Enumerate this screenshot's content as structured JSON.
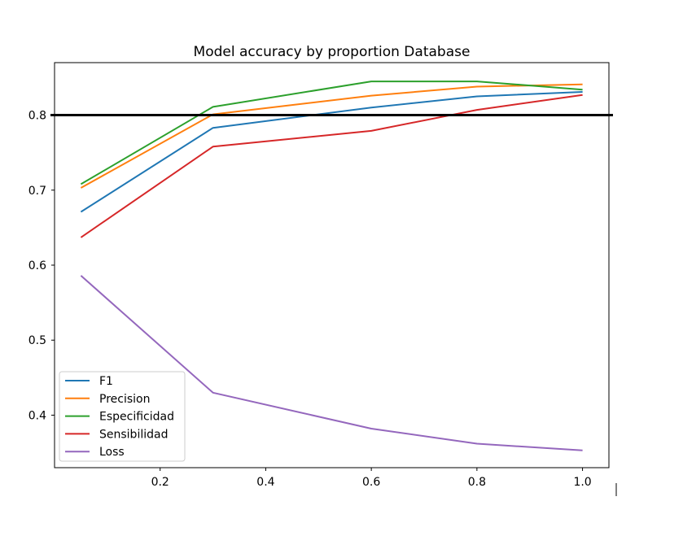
{
  "chart_data": {
    "type": "line",
    "title": "Model accuracy by proportion Database",
    "xlabel": "",
    "ylabel": "",
    "xlim": [
      0.0,
      1.05
    ],
    "ylim": [
      0.33,
      0.87
    ],
    "xticks": [
      0.2,
      0.4,
      0.6,
      0.8,
      1.0
    ],
    "xtick_labels": [
      "0.2",
      "0.4",
      "0.6",
      "0.8",
      "1.0"
    ],
    "yticks": [
      0.4,
      0.5,
      0.6,
      0.7,
      0.8
    ],
    "ytick_labels": [
      "0.4",
      "0.5",
      "0.6",
      "0.7",
      "0.8"
    ],
    "x": [
      0.05,
      0.3,
      0.6,
      0.8,
      1.0
    ],
    "series": [
      {
        "name": "F1",
        "color": "#1f77b4",
        "values": [
          0.671,
          0.783,
          0.81,
          0.825,
          0.831
        ]
      },
      {
        "name": "Precision",
        "color": "#ff7f0e",
        "values": [
          0.703,
          0.801,
          0.826,
          0.838,
          0.841
        ]
      },
      {
        "name": "Especificidad",
        "color": "#2ca02c",
        "values": [
          0.708,
          0.811,
          0.845,
          0.845,
          0.834
        ]
      },
      {
        "name": "Sensibilidad",
        "color": "#d62728",
        "values": [
          0.637,
          0.758,
          0.779,
          0.807,
          0.827
        ]
      },
      {
        "name": "Loss",
        "color": "#9467bd",
        "values": [
          0.586,
          0.43,
          0.382,
          0.362,
          0.353
        ]
      }
    ],
    "hline": {
      "y": 0.8,
      "color": "#000000"
    },
    "legend_position": "lower-left",
    "grid": false
  }
}
